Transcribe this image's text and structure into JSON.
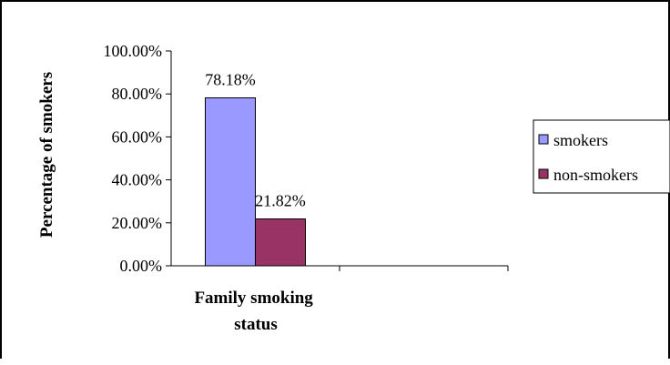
{
  "chart_data": {
    "type": "bar",
    "categories": [
      "Family smoking status"
    ],
    "series": [
      {
        "name": "smokers",
        "values": [
          78.18
        ],
        "color": "#9999ff"
      },
      {
        "name": "non-smokers",
        "values": [
          21.82
        ],
        "color": "#993366"
      }
    ],
    "value_labels": [
      "78.18%",
      "21.82%"
    ],
    "ylabel": "Percentage of smokers",
    "xlabel": "Family smoking status",
    "xlabel_lines": [
      "Family smoking",
      "status"
    ],
    "ylim": [
      0,
      100
    ],
    "yticks": [
      "0.00%",
      "20.00%",
      "40.00%",
      "60.00%",
      "80.00%",
      "100.00%"
    ],
    "legend_position": "right",
    "grid": false
  }
}
